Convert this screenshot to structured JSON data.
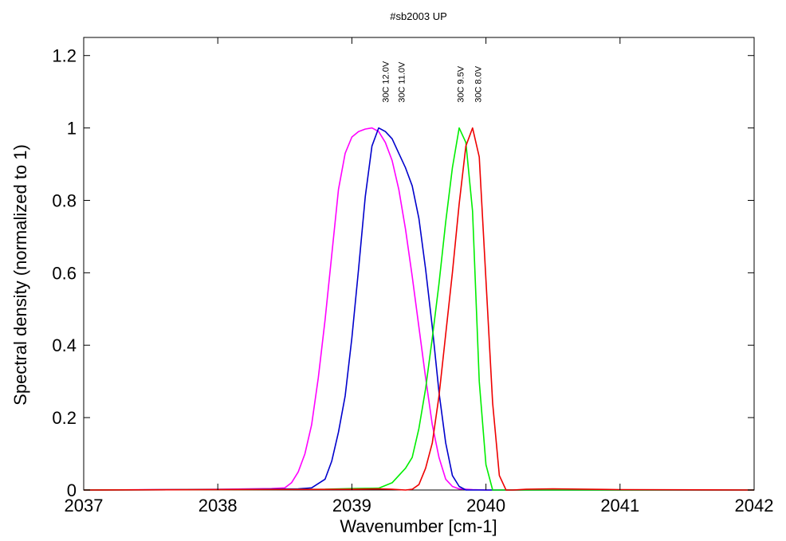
{
  "chart_data": {
    "type": "line",
    "title": "#sb2003 UP",
    "xlabel": "Wavenumber [cm-1]",
    "ylabel": "Spectral density (normalized to 1)",
    "xlim": [
      2037,
      2042
    ],
    "ylim": [
      0,
      1.25
    ],
    "xticks": [
      2037,
      2038,
      2039,
      2040,
      2041,
      2042
    ],
    "xtick_labels": [
      "2037",
      "2038",
      "2039",
      "2040",
      "2041",
      "2042"
    ],
    "yticks": [
      0,
      0.2,
      0.4,
      0.6,
      0.8,
      1,
      1.2
    ],
    "ytick_labels": [
      "0",
      "0.2",
      "0.4",
      "0.6",
      "0.8",
      "1",
      "1.2"
    ],
    "grid": false,
    "annotations": [
      {
        "text": "30C 12.0V",
        "x": 2039.25,
        "y": 1.07
      },
      {
        "text": "30C 11.0V",
        "x": 2039.37,
        "y": 1.07
      },
      {
        "text": "30C 9.5V",
        "x": 2039.81,
        "y": 1.07
      },
      {
        "text": "30C 8.0V",
        "x": 2039.94,
        "y": 1.07
      }
    ],
    "series": [
      {
        "color": "#ff00ff",
        "x": [
          2037.0,
          2038.0,
          2038.4,
          2038.5,
          2038.55,
          2038.6,
          2038.65,
          2038.7,
          2038.75,
          2038.8,
          2038.85,
          2038.9,
          2038.95,
          2039.0,
          2039.05,
          2039.1,
          2039.15,
          2039.2,
          2039.25,
          2039.3,
          2039.35,
          2039.4,
          2039.45,
          2039.5,
          2039.55,
          2039.6,
          2039.65,
          2039.7,
          2039.75,
          2039.8,
          2039.9,
          2040.0,
          2042.0
        ],
        "y": [
          0.0,
          0.002,
          0.004,
          0.006,
          0.02,
          0.05,
          0.1,
          0.18,
          0.31,
          0.47,
          0.65,
          0.83,
          0.93,
          0.975,
          0.99,
          0.997,
          1.0,
          0.99,
          0.96,
          0.91,
          0.83,
          0.72,
          0.59,
          0.45,
          0.31,
          0.18,
          0.09,
          0.03,
          0.01,
          0.003,
          0.001,
          0.0,
          0.0
        ]
      },
      {
        "color": "#0000cc",
        "x": [
          2037.0,
          2038.0,
          2038.6,
          2038.7,
          2038.8,
          2038.85,
          2038.9,
          2038.95,
          2039.0,
          2039.05,
          2039.1,
          2039.15,
          2039.2,
          2039.25,
          2039.3,
          2039.35,
          2039.4,
          2039.45,
          2039.5,
          2039.55,
          2039.6,
          2039.65,
          2039.7,
          2039.75,
          2039.8,
          2039.85,
          2039.9,
          2039.95,
          2040.0,
          2042.0
        ],
        "y": [
          0.0,
          0.001,
          0.003,
          0.006,
          0.03,
          0.08,
          0.16,
          0.26,
          0.42,
          0.61,
          0.81,
          0.95,
          1.0,
          0.99,
          0.97,
          0.93,
          0.89,
          0.84,
          0.75,
          0.61,
          0.45,
          0.27,
          0.13,
          0.04,
          0.01,
          0.0,
          0.0,
          0.0,
          0.0,
          0.0
        ]
      },
      {
        "color": "#00ee00",
        "x": [
          2037.0,
          2038.8,
          2039.0,
          2039.2,
          2039.3,
          2039.35,
          2039.4,
          2039.45,
          2039.5,
          2039.55,
          2039.6,
          2039.65,
          2039.7,
          2039.75,
          2039.8,
          2039.85,
          2039.9,
          2039.95,
          2040.0,
          2040.05,
          2040.1,
          2042.0
        ],
        "y": [
          0.0,
          0.002,
          0.004,
          0.005,
          0.02,
          0.04,
          0.06,
          0.09,
          0.17,
          0.28,
          0.42,
          0.57,
          0.74,
          0.89,
          1.0,
          0.96,
          0.77,
          0.3,
          0.07,
          0.0,
          0.0,
          0.0
        ]
      },
      {
        "color": "#ee0000",
        "x": [
          2037.0,
          2039.0,
          2039.2,
          2039.3,
          2039.4,
          2039.45,
          2039.5,
          2039.55,
          2039.6,
          2039.65,
          2039.7,
          2039.75,
          2039.8,
          2039.85,
          2039.9,
          2039.95,
          2040.0,
          2040.05,
          2040.1,
          2040.15,
          2040.2,
          2040.3,
          2040.5,
          2041.0,
          2042.0
        ],
        "y": [
          0.0,
          0.002,
          0.003,
          0.002,
          0.0,
          0.002,
          0.015,
          0.06,
          0.13,
          0.26,
          0.43,
          0.6,
          0.79,
          0.95,
          1.0,
          0.92,
          0.58,
          0.24,
          0.04,
          0.0,
          0.0,
          0.002,
          0.003,
          0.001,
          0.0
        ]
      }
    ]
  }
}
